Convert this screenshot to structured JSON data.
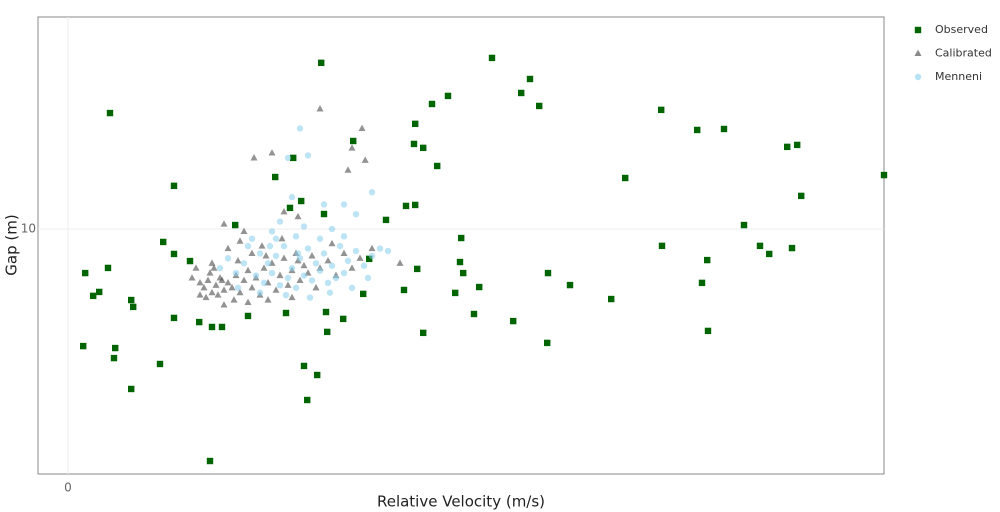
{
  "chart_data": {
    "type": "scatter",
    "x_label": "Relative Velocity (m/s)",
    "y_label": "Gap (m)",
    "xlim": [
      -0.75,
      20.4
    ],
    "ylim": [
      0,
      18.65
    ],
    "xticks": [
      0
    ],
    "yticks": [
      10
    ],
    "grid": true,
    "legend": "right",
    "series": [
      {
        "name": "Observed",
        "color": "#006400",
        "marker": "square",
        "alpha": 1,
        "x": [
          1.05,
          6.33,
          10.6,
          11.55,
          11.33,
          9.5,
          9.1,
          11.78,
          14.83,
          15.73,
          16.4,
          8.68,
          7.13,
          8.65,
          8.88,
          18.23,
          17.98,
          5.63,
          9.23,
          5.18,
          2.65,
          13.93,
          20.4,
          18.33,
          5.83,
          5.55,
          8.68,
          8.45,
          6.4,
          7.95,
          4.18,
          16.9,
          9.83,
          2.38,
          14.85,
          17.3,
          18.1,
          2.65,
          17.53,
          9.8,
          15.98,
          3.05,
          7.53,
          1.0,
          0.43,
          8.73,
          9.88,
          12.0,
          15.85,
          10.28,
          12.55,
          8.4,
          9.68,
          0.63,
          0.78,
          7.38,
          1.58,
          13.58,
          1.63,
          5.45,
          6.45,
          10.15,
          2.65,
          4.5,
          6.88,
          3.28,
          11.13,
          3.6,
          3.85,
          6.48,
          8.88,
          16.0,
          11.98,
          0.38,
          1.18,
          1.15,
          2.3,
          5.9,
          6.23,
          1.58,
          5.98,
          3.55
        ],
        "values": [
          14.73,
          16.78,
          16.98,
          16.12,
          15.55,
          15.43,
          15.1,
          15.02,
          14.86,
          14.04,
          14.08,
          14.29,
          13.59,
          13.47,
          13.31,
          13.43,
          13.35,
          12.9,
          12.57,
          12.12,
          11.76,
          12.08,
          12.2,
          11.35,
          11.14,
          10.86,
          10.98,
          10.94,
          10.61,
          10.37,
          10.16,
          10.16,
          9.63,
          9.47,
          9.31,
          9.31,
          9.22,
          8.98,
          8.98,
          8.65,
          8.73,
          8.69,
          8.78,
          8.41,
          8.2,
          8.37,
          8.2,
          8.2,
          7.8,
          7.63,
          7.71,
          7.51,
          7.39,
          7.27,
          7.43,
          7.35,
          7.1,
          7.14,
          6.82,
          6.57,
          6.61,
          6.53,
          6.37,
          6.45,
          6.33,
          6.2,
          6.24,
          6.0,
          6.0,
          5.8,
          5.76,
          5.84,
          5.35,
          5.22,
          5.14,
          4.73,
          4.49,
          4.41,
          4.04,
          3.47,
          3.02,
          0.53
        ]
      },
      {
        "name": "Calibrated",
        "color": "#3a3a3a",
        "marker": "triangle",
        "alpha": 0.55,
        "x": [
          6.3,
          7.35,
          4.65,
          7.43,
          5.1,
          7.1,
          7.0,
          5.75,
          5.4,
          8.3,
          3.9,
          4.4,
          3.3,
          3.4,
          3.5,
          3.6,
          3.7,
          3.8,
          3.9,
          4.0,
          3.45,
          3.55,
          3.75,
          3.85,
          4.1,
          4.2,
          4.3,
          4.4,
          4.5,
          4.6,
          4.7,
          4.8,
          4.9,
          5.0,
          5.1,
          5.2,
          5.3,
          5.4,
          5.5,
          5.6,
          5.7,
          5.8,
          5.9,
          6.0,
          6.1,
          6.2,
          6.3,
          6.5,
          6.7,
          6.9,
          7.1,
          7.3,
          4.0,
          4.3,
          4.6,
          3.6,
          3.2,
          3.9,
          4.5,
          5.0,
          5.6,
          4.25,
          4.85,
          5.35,
          3.3,
          3.65,
          4.15,
          6.6,
          7.6,
          3.1,
          4.95,
          5.75
        ],
        "values": [
          14.9,
          14.1,
          12.9,
          12.8,
          13.1,
          13.3,
          12.4,
          10.5,
          10.7,
          8.6,
          10.2,
          9.9,
          7.8,
          7.6,
          7.9,
          7.4,
          7.7,
          8.0,
          7.5,
          7.8,
          7.2,
          8.2,
          7.3,
          7.9,
          7.6,
          8.1,
          7.4,
          7.9,
          8.3,
          7.6,
          8.0,
          7.3,
          8.4,
          7.8,
          8.6,
          7.5,
          8.1,
          8.8,
          7.7,
          8.3,
          9.0,
          7.9,
          8.5,
          8.2,
          8.9,
          7.6,
          8.4,
          8.7,
          8.1,
          9.0,
          8.4,
          8.8,
          9.2,
          9.5,
          9.0,
          8.6,
          8.4,
          6.9,
          7.0,
          7.1,
          7.2,
          8.7,
          9.3,
          9.6,
          7.3,
          8.4,
          7.1,
          9.4,
          9.2,
          8.0,
          8.9,
          8.7
        ]
      },
      {
        "name": "Menneni",
        "color": "#87ceeb",
        "marker": "circle",
        "alpha": 0.55,
        "x": [
          5.8,
          5.5,
          6.0,
          7.6,
          6.4,
          6.9,
          5.6,
          5.1,
          5.3,
          7.2,
          7.8,
          8.0,
          4.5,
          4.8,
          5.0,
          5.2,
          5.4,
          5.6,
          5.8,
          6.0,
          6.2,
          6.4,
          6.6,
          6.8,
          7.0,
          7.2,
          7.4,
          7.6,
          4.7,
          4.9,
          5.1,
          5.3,
          5.5,
          5.7,
          5.9,
          6.1,
          6.3,
          6.5,
          6.7,
          4.4,
          4.6,
          5.2,
          5.7,
          6.3,
          6.9,
          4.2,
          4.0,
          5.45,
          6.05,
          6.55,
          7.1,
          4.8,
          4.25,
          5.9,
          6.6,
          3.8,
          7.5,
          6.9,
          5.05,
          5.75
        ],
        "values": [
          14.1,
          12.9,
          13.0,
          11.5,
          11.0,
          11.0,
          11.3,
          9.9,
          10.3,
          10.6,
          9.2,
          9.1,
          9.3,
          9.0,
          8.6,
          8.9,
          9.3,
          8.4,
          8.8,
          9.2,
          8.6,
          9.0,
          8.5,
          9.3,
          8.7,
          9.1,
          8.5,
          8.9,
          8.1,
          7.8,
          8.2,
          7.7,
          8.0,
          7.6,
          8.1,
          7.9,
          8.3,
          7.8,
          8.0,
          8.6,
          9.6,
          9.6,
          9.7,
          9.6,
          9.7,
          8.2,
          8.8,
          7.3,
          7.2,
          7.4,
          7.6,
          7.4,
          7.6,
          10.1,
          10.0,
          8.4,
          8.0,
          8.2,
          9.3,
          9.0
        ]
      }
    ]
  }
}
